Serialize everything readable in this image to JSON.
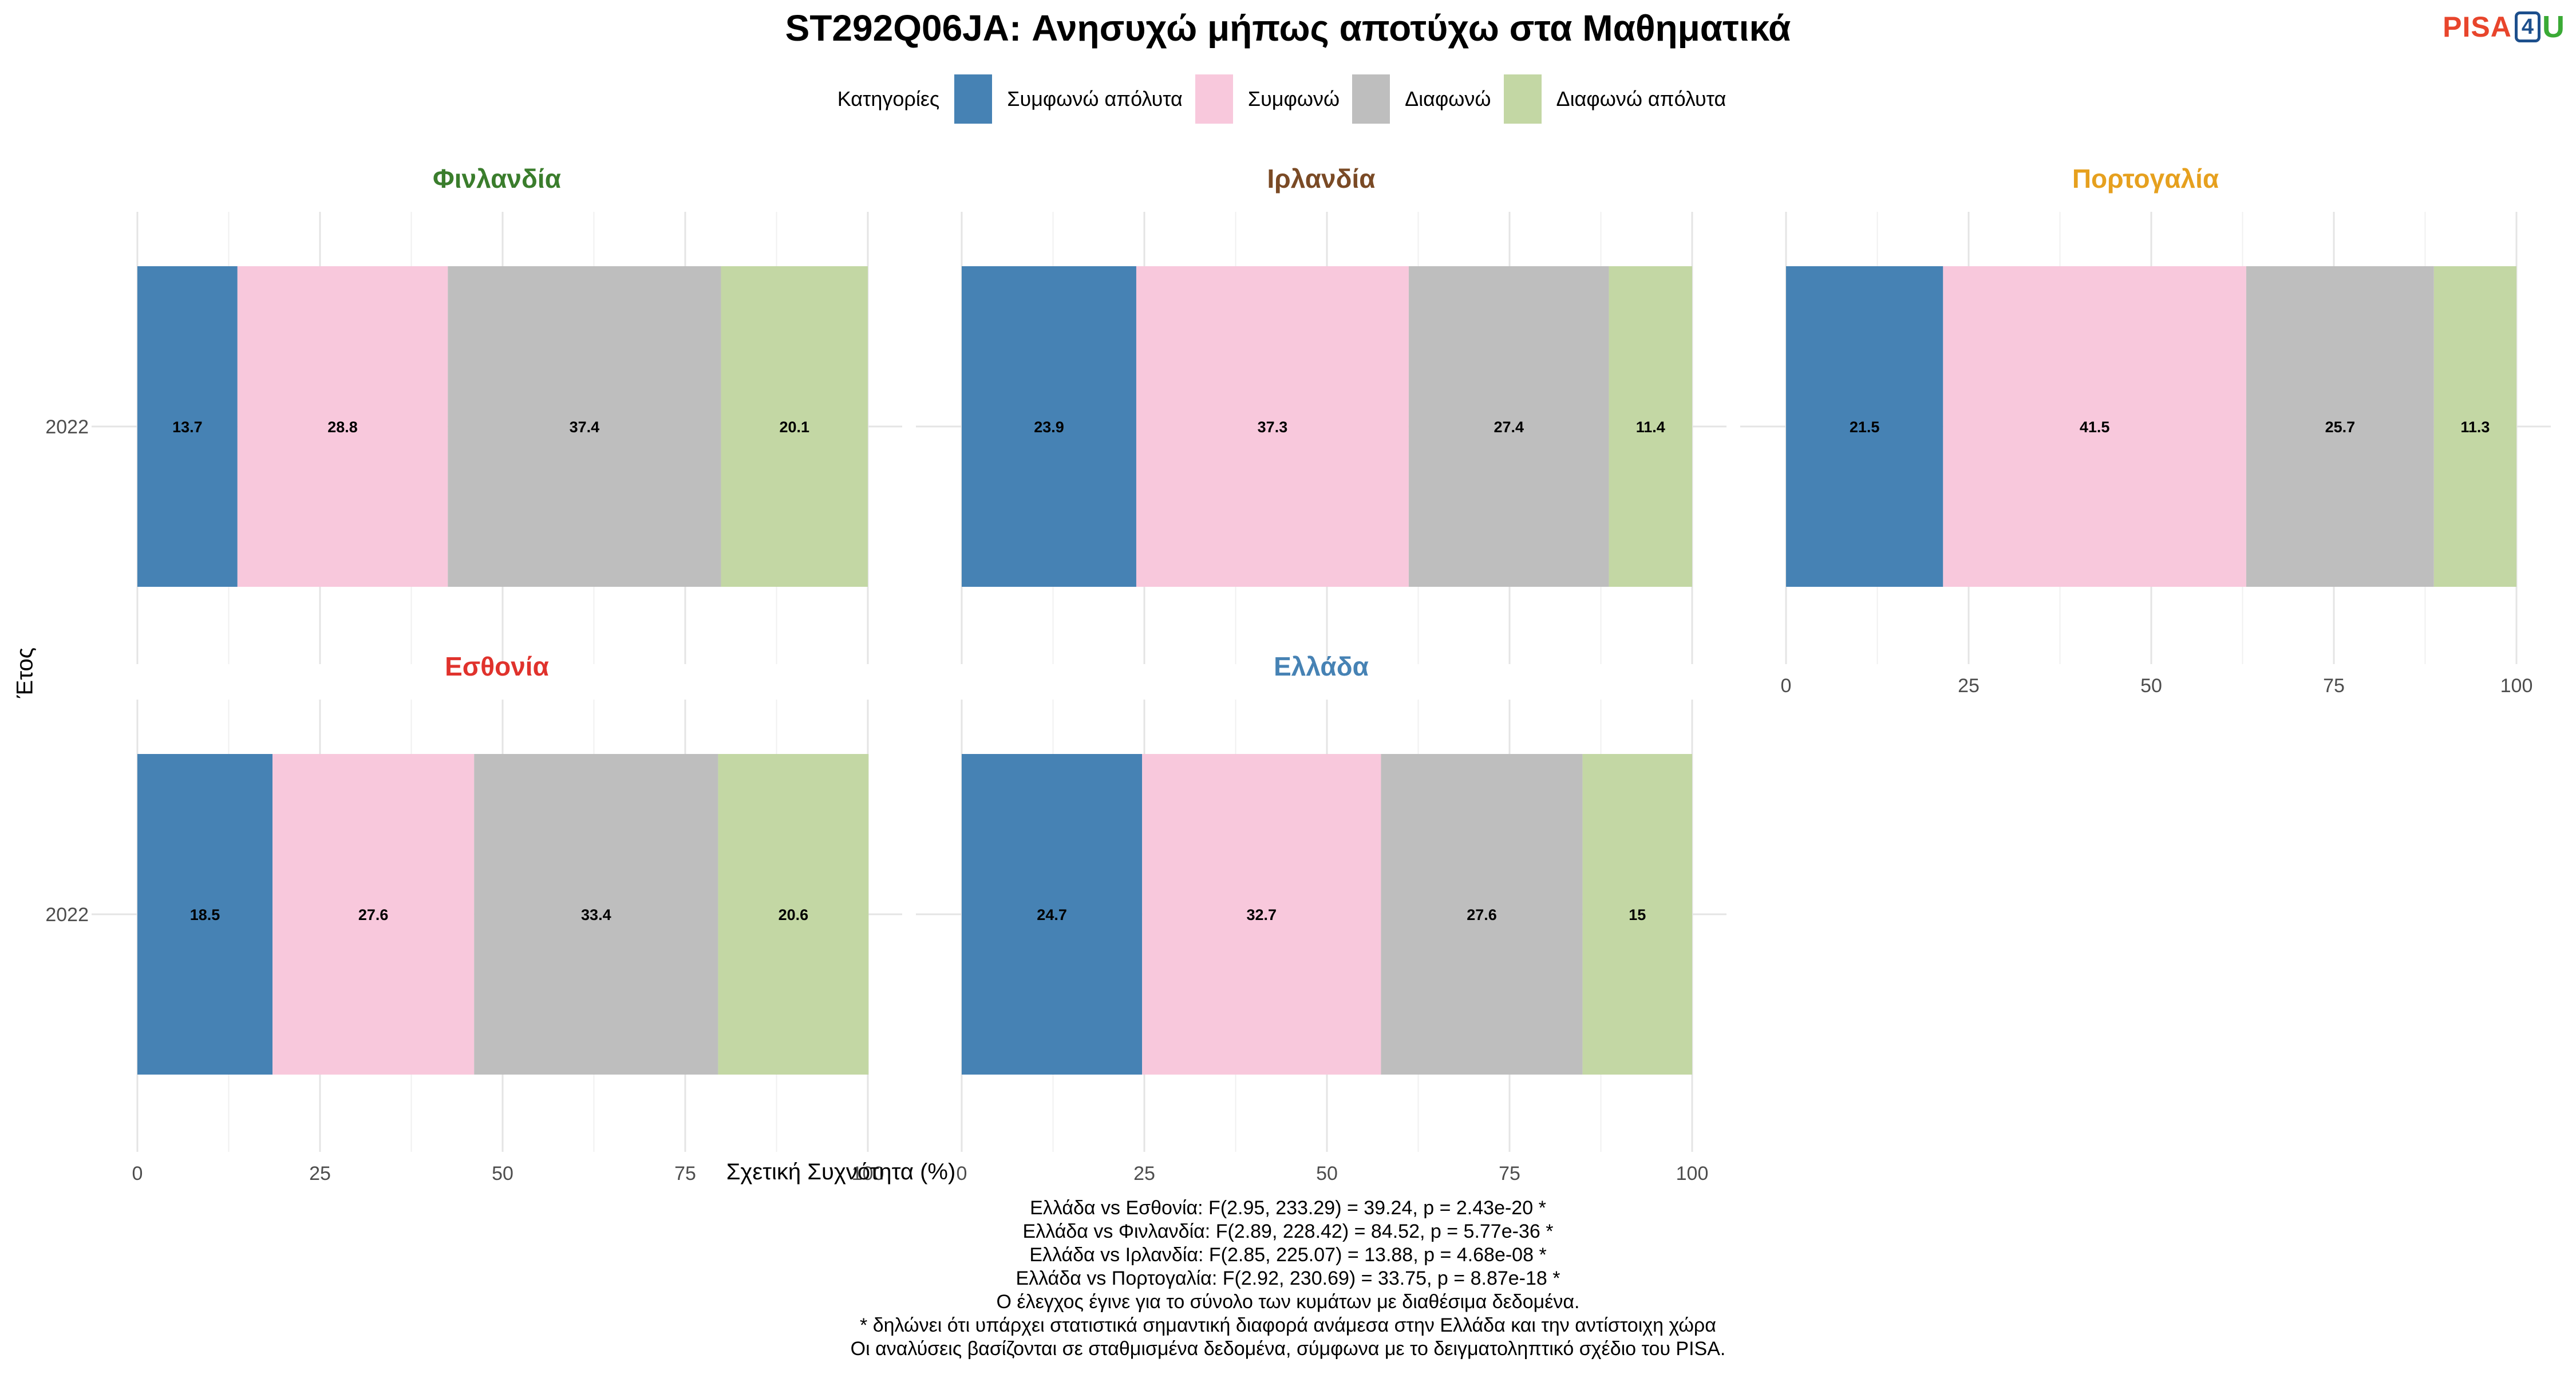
{
  "title": "ST292Q06JA: Ανησυχώ μήπως αποτύχω στα Μαθηματικά",
  "logo": {
    "text_pisa": "PISA",
    "text_four": "4",
    "text_u": "U"
  },
  "legend": {
    "title": "Κατηγορίες"
  },
  "chart_data": {
    "type": "bar",
    "orientation": "horizontal",
    "stacked": true,
    "title": "ST292Q06JA: Ανησυχώ μήπως αποτύχω στα Μαθηματικά",
    "xlabel": "Σχετική Συχνότητα (%)",
    "ylabel": "Έτος",
    "xlim": [
      0,
      100
    ],
    "x_ticks": [
      0,
      25,
      50,
      75,
      100
    ],
    "grid": true,
    "legend_position": "top",
    "series": [
      {
        "name": "Συμφωνώ απόλυτα",
        "color": "#4682b4"
      },
      {
        "name": "Συμφωνώ",
        "color": "#f8c8dc"
      },
      {
        "name": "Διαφωνώ",
        "color": "#bebebe"
      },
      {
        "name": "Διαφωνώ απόλυτα",
        "color": "#c3d7a4"
      }
    ],
    "panels": [
      {
        "name": "Φινλανδία",
        "title_color": "#3a7d2c",
        "year": "2022",
        "values": [
          13.7,
          28.8,
          37.4,
          20.1
        ],
        "labels": [
          "13.7",
          "28.8",
          "37.4",
          "20.1"
        ]
      },
      {
        "name": "Ιρλανδία",
        "title_color": "#7a4a25",
        "year": "2022",
        "values": [
          23.9,
          37.3,
          27.4,
          11.4
        ],
        "labels": [
          "23.9",
          "37.3",
          "27.4",
          "11.4"
        ]
      },
      {
        "name": "Πορτογαλία",
        "title_color": "#e6a01e",
        "year": "2022",
        "values": [
          21.5,
          41.5,
          25.7,
          11.3
        ],
        "labels": [
          "21.5",
          "41.5",
          "25.7",
          "11.3"
        ]
      },
      {
        "name": "Εσθονία",
        "title_color": "#e0322c",
        "year": "2022",
        "values": [
          18.5,
          27.6,
          33.4,
          20.6
        ],
        "labels": [
          "18.5",
          "27.6",
          "33.4",
          "20.6"
        ]
      },
      {
        "name": "Ελλάδα",
        "title_color": "#4682b4",
        "year": "2022",
        "values": [
          24.7,
          32.7,
          27.6,
          15
        ],
        "labels": [
          "24.7",
          "32.7",
          "27.6",
          "15"
        ]
      }
    ]
  },
  "footnotes": [
    "Ελλάδα vs Εσθονία: F(2.95, 233.29) = 39.24, p = 2.43e-20 *",
    "Ελλάδα vs Φινλανδία: F(2.89, 228.42) = 84.52, p = 5.77e-36 *",
    "Ελλάδα vs Ιρλανδία: F(2.85, 225.07) = 13.88, p = 4.68e-08 *",
    "Ελλάδα vs Πορτογαλία: F(2.92, 230.69) = 33.75, p = 8.87e-18 *",
    "Ο έλεγχος έγινε για το σύνολο των κυμάτων με διαθέσιμα δεδομένα.",
    "* δηλώνει ότι υπάρχει στατιστικά σημαντική διαφορά ανάμεσα στην Ελλάδα και την αντίστοιχη χώρα",
    "Οι αναλύσεις βασίζονται σε σταθμισμένα δεδομένα, σύμφωνα με το δειγματοληπτικό σχέδιο του PISA."
  ]
}
